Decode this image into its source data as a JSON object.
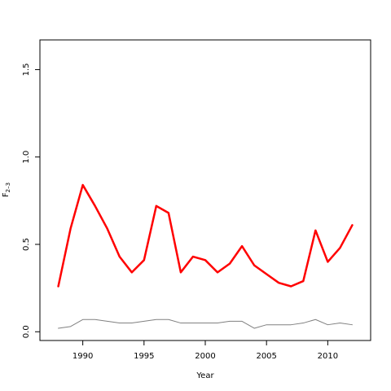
{
  "chart_data": {
    "type": "line",
    "title": "",
    "xlabel": "Year",
    "ylabel": "F",
    "ylabel_subscript": "2–3",
    "xlim": [
      1986.5,
      2013.5
    ],
    "ylim": [
      -0.05,
      1.67
    ],
    "x_ticks": [
      1990,
      1995,
      2000,
      2005,
      2010
    ],
    "x_tick_labels": [
      "1990",
      "1995",
      "2000",
      "2005",
      "2010"
    ],
    "y_ticks": [
      0.0,
      0.5,
      1.0,
      1.5
    ],
    "y_tick_labels": [
      "0.0",
      "0.5",
      "1.0",
      "1.5"
    ],
    "grid": false,
    "x": [
      1988,
      1989,
      1990,
      1991,
      1992,
      1993,
      1994,
      1995,
      1996,
      1997,
      1998,
      1999,
      2000,
      2001,
      2002,
      2003,
      2004,
      2005,
      2006,
      2007,
      2008,
      2009,
      2010,
      2011,
      2012
    ],
    "series": [
      {
        "color": "#ff0000",
        "line_width": 2.5,
        "values": [
          0.26,
          0.59,
          0.84,
          0.72,
          0.59,
          0.43,
          0.34,
          0.41,
          0.72,
          0.68,
          0.34,
          0.43,
          0.41,
          0.34,
          0.39,
          0.49,
          0.38,
          0.33,
          0.28,
          0.26,
          0.29,
          0.58,
          0.4,
          0.48,
          0.61
        ]
      },
      {
        "color": "#808080",
        "line_width": 1,
        "values": [
          0.02,
          0.03,
          0.07,
          0.07,
          0.06,
          0.05,
          0.05,
          0.06,
          0.07,
          0.07,
          0.05,
          0.05,
          0.05,
          0.05,
          0.06,
          0.06,
          0.02,
          0.04,
          0.04,
          0.04,
          0.05,
          0.07,
          0.04,
          0.05,
          0.04
        ]
      }
    ]
  }
}
